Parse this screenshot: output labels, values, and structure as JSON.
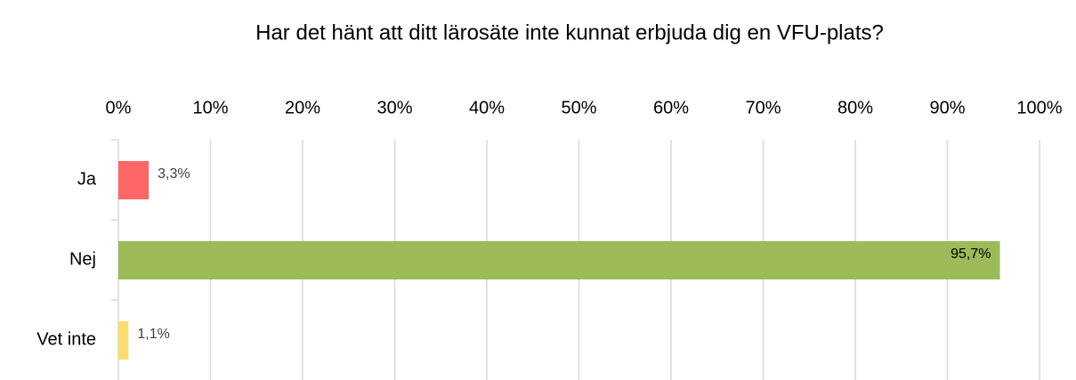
{
  "chart_data": {
    "type": "bar",
    "orientation": "horizontal",
    "title": "Har det hänt att ditt lärosäte inte kunnat erbjuda dig en VFU-plats?",
    "categories": [
      "Ja",
      "Nej",
      "Vet inte"
    ],
    "values": [
      3.3,
      95.7,
      1.1
    ],
    "value_labels": [
      "3,3%",
      "95,7%",
      "1,1%"
    ],
    "colors": [
      "#ff6666",
      "#9bbb59",
      "#f9dc72"
    ],
    "xlim": [
      0,
      100
    ],
    "xticks": [
      {
        "value": 0,
        "label": "0%"
      },
      {
        "value": 10,
        "label": "10%"
      },
      {
        "value": 20,
        "label": "20%"
      },
      {
        "value": 30,
        "label": "30%"
      },
      {
        "value": 40,
        "label": "40%"
      },
      {
        "value": 50,
        "label": "50%"
      },
      {
        "value": 60,
        "label": "60%"
      },
      {
        "value": 70,
        "label": "70%"
      },
      {
        "value": 80,
        "label": "80%"
      },
      {
        "value": 90,
        "label": "90%"
      },
      {
        "value": 100,
        "label": "100%"
      }
    ],
    "grid": true
  }
}
